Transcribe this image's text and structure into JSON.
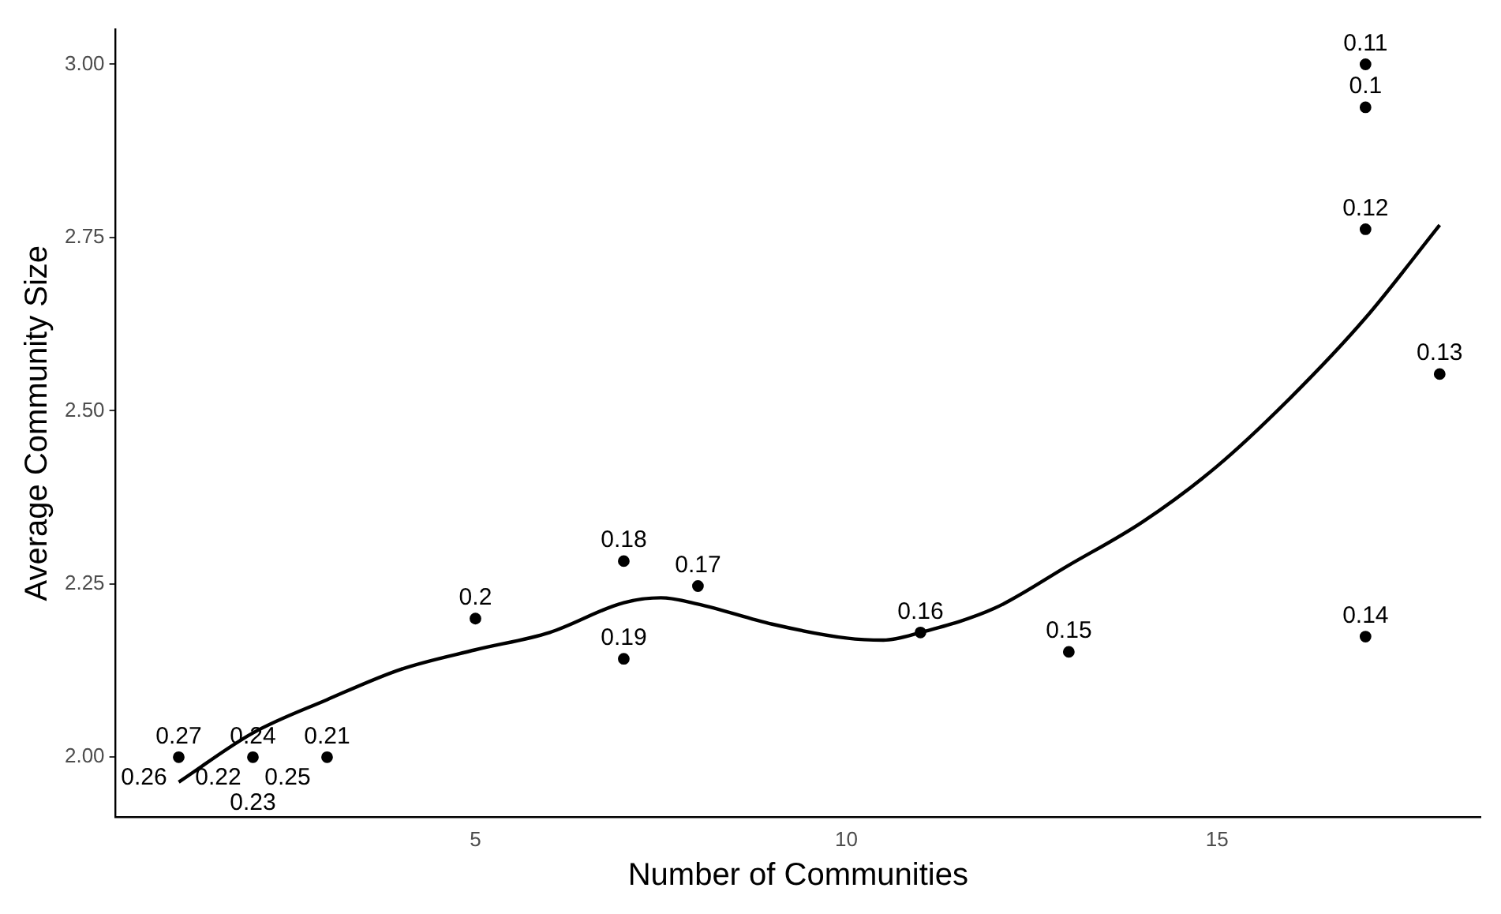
{
  "chart_data": {
    "type": "scatter",
    "xlabel": "Number of Communities",
    "ylabel": "Average Community Size",
    "xlim": [
      0.15,
      18.55
    ],
    "xticks": [
      5,
      10,
      15
    ],
    "ylim": [
      1.914,
      3.05
    ],
    "yticks": [
      {
        "value": 2,
        "label": "2.00"
      },
      {
        "value": 2.25,
        "label": "2.25"
      },
      {
        "value": 2.5,
        "label": "2.50"
      },
      {
        "value": 2.75,
        "label": "2.75"
      },
      {
        "value": 3,
        "label": "3.00"
      }
    ],
    "grid": false,
    "legend": false,
    "marker": "circle",
    "series": [
      {
        "type": "scatter",
        "color": "#000000",
        "x": [
          1,
          2,
          3,
          5,
          7,
          7,
          8,
          11,
          13,
          17,
          17,
          17,
          17,
          18
        ],
        "values": [
          2,
          2,
          2,
          2.2,
          2.283,
          2.142,
          2.247,
          2.18,
          2.152,
          3,
          2.938,
          2.762,
          2.174,
          2.553
        ]
      },
      {
        "type": "line",
        "color": "#000000",
        "marker": "none",
        "x": [
          1,
          2,
          3,
          4,
          5,
          6,
          7,
          7.5,
          8,
          9,
          10,
          10.5,
          11,
          12,
          13,
          14,
          15,
          16,
          17,
          18
        ],
        "values": [
          1.964,
          2.035,
          2.083,
          2.127,
          2.155,
          2.18,
          2.223,
          2.23,
          2.221,
          2.192,
          2.172,
          2.169,
          2.18,
          2.215,
          2.277,
          2.34,
          2.42,
          2.52,
          2.634,
          2.768
        ]
      }
    ],
    "annotations": [
      {
        "text": "0.27",
        "x": 1,
        "y": 2
      },
      {
        "text": "0.26",
        "x": 1,
        "y": 2
      },
      {
        "text": "0.24",
        "x": 2,
        "y": 2
      },
      {
        "text": "0.22",
        "x": 2,
        "y": 2
      },
      {
        "text": "0.25",
        "x": 2,
        "y": 2
      },
      {
        "text": "0.23",
        "x": 2,
        "y": 2
      },
      {
        "text": "0.21",
        "x": 3,
        "y": 2
      },
      {
        "text": "0.2",
        "x": 5,
        "y": 2.2
      },
      {
        "text": "0.18",
        "x": 7,
        "y": 2.283
      },
      {
        "text": "0.19",
        "x": 7,
        "y": 2.142
      },
      {
        "text": "0.17",
        "x": 8,
        "y": 2.247
      },
      {
        "text": "0.16",
        "x": 11,
        "y": 2.18
      },
      {
        "text": "0.15",
        "x": 13,
        "y": 2.152
      },
      {
        "text": "0.11",
        "x": 17,
        "y": 3
      },
      {
        "text": "0.1",
        "x": 17,
        "y": 2.938
      },
      {
        "text": "0.12",
        "x": 17,
        "y": 2.762
      },
      {
        "text": "0.14",
        "x": 17,
        "y": 2.174
      },
      {
        "text": "0.13",
        "x": 18,
        "y": 2.553
      }
    ]
  }
}
